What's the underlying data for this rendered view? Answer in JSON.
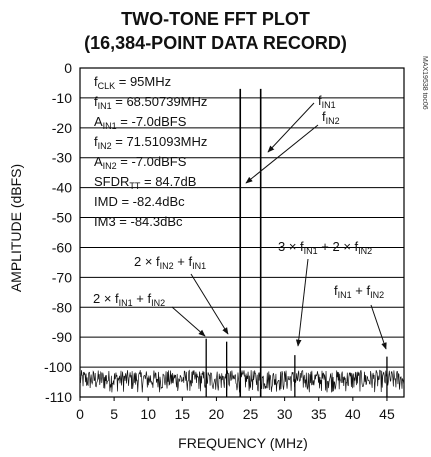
{
  "chart_data": {
    "type": "line",
    "title": "TWO-TONE FFT PLOT",
    "subtitle": "(16,384-POINT DATA RECORD)",
    "xlabel": "FREQUENCY (MHz)",
    "ylabel": "AMPLITUDE (dBFS)",
    "xlim": [
      0,
      47.5
    ],
    "ylim": [
      -110,
      0
    ],
    "xticks": [
      "0",
      "5",
      "10",
      "15",
      "20",
      "25",
      "30",
      "35",
      "40",
      "45"
    ],
    "yticks": [
      "0",
      "-10",
      "-20",
      "-30",
      "-40",
      "-50",
      "-60",
      "-70",
      "-80",
      "-90",
      "-100",
      "-110"
    ],
    "grid": true,
    "peaks": [
      {
        "x": 23.49261,
        "y": -7.0
      },
      {
        "x": 26.48907,
        "y": -7.0
      },
      {
        "x": 18.5,
        "y": -90.5
      },
      {
        "x": 21.5,
        "y": -91.5
      },
      {
        "x": 31.5,
        "y": -96.0
      },
      {
        "x": 45.0,
        "y": -96.5
      }
    ],
    "noise_floor": [
      -110,
      -101
    ]
  },
  "info": {
    "fclk_name": "f",
    "fclk_sub": "CLK",
    "fclk_val": " = 95MHz",
    "fin1_name": "f",
    "fin1_sub": "IN1",
    "fin1_val": " = 68.50739MHz",
    "ain1_name": "A",
    "ain1_sub": "IN1",
    "ain1_val": " = -7.0dBFS",
    "fin2_name": "f",
    "fin2_sub": "IN2",
    "fin2_val": " = 71.51093MHz",
    "ain2_name": "A",
    "ain2_sub": "IN2",
    "ain2_val": " = -7.0dBFS",
    "sfdr_name": "SFDR",
    "sfdr_sub": "TT",
    "sfdr_val": " = 84.7dB",
    "imd": "IMD = -82.4dBc",
    "im3": "IM3 = -84.3dBc"
  },
  "annotations": {
    "fin1_label": "f",
    "fin1_label_sub": "IN1",
    "fin2_label": "f",
    "fin2_label_sub": "IN2",
    "a_p1": "2 × f",
    "a_s1": "IN2",
    "a_p2": " + f",
    "a_s2": "IN1",
    "b_p1": "2 × f",
    "b_s1": "IN1",
    "b_p2": " + f",
    "b_s2": "IN2",
    "c_p1": "3 × f",
    "c_s1": "IN1",
    "c_p2": " + 2 × f",
    "c_s2": "IN2",
    "d_p1": "f",
    "d_s1": "IN1",
    "d_p2": " + f",
    "d_s2": "IN2"
  },
  "side_code": "MAX19538 toc06"
}
